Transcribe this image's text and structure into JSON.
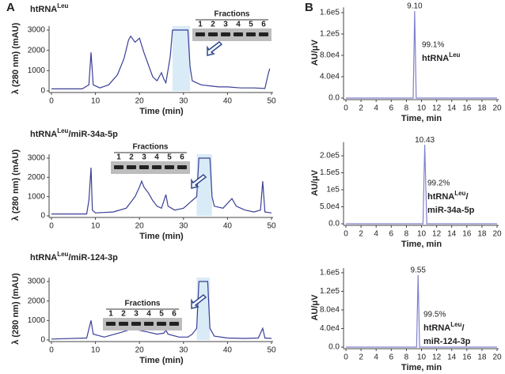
{
  "panels": [
    "A",
    "B"
  ],
  "chart_data": [
    {
      "type": "line",
      "title": [
        "htRNA",
        "Leu"
      ],
      "xlabel": "Time (min)",
      "ylabel": "λ (280 nm) (mAU)",
      "color": "#3a3f96",
      "xlim": [
        0,
        50
      ],
      "xticks": [
        0,
        10,
        20,
        30,
        40,
        50
      ],
      "ylim": [
        0,
        3200
      ],
      "yticks": [
        0,
        1000,
        2000,
        3000
      ],
      "x": [
        0,
        7,
        8.5,
        9,
        9.5,
        11,
        13,
        15,
        16.5,
        17.5,
        18,
        19,
        20,
        21,
        22,
        23,
        24,
        25,
        25.5,
        26,
        27,
        27.5,
        31,
        31.5,
        32,
        34,
        36,
        38,
        40,
        43,
        46,
        48.5,
        49.2,
        49.6
      ],
      "values": [
        100,
        100,
        300,
        1900,
        300,
        150,
        300,
        800,
        1600,
        2500,
        2700,
        2400,
        2600,
        1900,
        1300,
        700,
        500,
        900,
        600,
        400,
        1700,
        3000,
        3000,
        1200,
        500,
        300,
        250,
        200,
        200,
        150,
        150,
        120,
        800,
        1100
      ],
      "highlight": [
        27.5,
        31.5
      ],
      "inset": {
        "title": "Fractions",
        "lanes": [
          "1",
          "2",
          "3",
          "4",
          "5",
          "6"
        ]
      }
    },
    {
      "type": "line",
      "title": [
        "htRNA",
        "Leu",
        "/miR-34a-5p"
      ],
      "xlabel": "Time (min)",
      "ylabel": "λ (280 nm) (mAU)",
      "color": "#3a3f96",
      "xlim": [
        0,
        50
      ],
      "xticks": [
        0,
        10,
        20,
        30,
        40,
        50
      ],
      "ylim": [
        0,
        3200
      ],
      "yticks": [
        0,
        1000,
        2000,
        3000
      ],
      "x": [
        0,
        8,
        8.5,
        9,
        9.3,
        10,
        14,
        17,
        19,
        20,
        20.5,
        21,
        22,
        23,
        24,
        25,
        26,
        26.5,
        28,
        30,
        31,
        32,
        33,
        33.5,
        36,
        36.5,
        37,
        39,
        41,
        42,
        44,
        46,
        47.5,
        48,
        48.5,
        50
      ],
      "values": [
        100,
        100,
        800,
        2500,
        300,
        150,
        200,
        400,
        1000,
        1500,
        1800,
        1500,
        1200,
        800,
        500,
        400,
        1100,
        500,
        300,
        400,
        600,
        800,
        1000,
        3000,
        3000,
        1000,
        500,
        400,
        900,
        500,
        300,
        200,
        300,
        1800,
        200,
        150
      ],
      "highlight": [
        33,
        36.5
      ],
      "inset": {
        "title": "Fractions",
        "lanes": [
          "1",
          "2",
          "3",
          "4",
          "5",
          "6"
        ]
      }
    },
    {
      "type": "line",
      "title": [
        "htRNA",
        "Leu",
        "/miR-124-3p"
      ],
      "xlabel": "Time (min)",
      "ylabel": "λ (280 nm) (mAU)",
      "color": "#3a3f96",
      "xlim": [
        0,
        50
      ],
      "xticks": [
        0,
        10,
        20,
        30,
        40,
        50
      ],
      "ylim": [
        0,
        3200
      ],
      "yticks": [
        0,
        1000,
        2000,
        3000
      ],
      "x": [
        0,
        8,
        9,
        9.5,
        12,
        16,
        18,
        20,
        22,
        24,
        25.5,
        26,
        26.5,
        29,
        31,
        32,
        33,
        33.5,
        35.5,
        36,
        37,
        40,
        44,
        47,
        48,
        48.5,
        50
      ],
      "values": [
        50,
        100,
        1000,
        300,
        150,
        400,
        550,
        500,
        400,
        300,
        350,
        500,
        300,
        150,
        150,
        300,
        600,
        3000,
        3000,
        600,
        200,
        100,
        80,
        100,
        600,
        100,
        80
      ],
      "highlight": [
        33,
        36
      ],
      "inset": {
        "title": "Fractions",
        "lanes": [
          "1",
          "2",
          "3",
          "4",
          "5",
          "6"
        ]
      }
    },
    {
      "type": "line",
      "xlabel": "Time, min",
      "ylabel": "AU/μV",
      "color": "#8080cc",
      "xlim": [
        0,
        20
      ],
      "xticks": [
        0,
        2,
        4,
        6,
        8,
        10,
        12,
        14,
        16,
        18,
        20
      ],
      "ylim": [
        0,
        170000
      ],
      "yticks": [
        {
          "value": 0,
          "label": "0.0"
        },
        {
          "value": 40000,
          "label": "4.0e4"
        },
        {
          "value": 80000,
          "label": "8.0e4"
        },
        {
          "value": 120000,
          "label": "1.2e5"
        },
        {
          "value": 160000,
          "label": "1.6e5"
        }
      ],
      "x": [
        0,
        8.9,
        9.1,
        9.3,
        20
      ],
      "values": [
        0,
        0,
        163000,
        0,
        0
      ],
      "peak": {
        "x": 9.1,
        "label": "9.10"
      },
      "annotation": "99.1%",
      "label": [
        [
          "htRNA",
          "Leu"
        ]
      ]
    },
    {
      "type": "line",
      "xlabel": "Time, min",
      "ylabel": "AU/μV",
      "color": "#8080cc",
      "xlim": [
        0,
        20
      ],
      "xticks": [
        0,
        2,
        4,
        6,
        8,
        10,
        12,
        14,
        16,
        18,
        20
      ],
      "ylim": [
        0,
        240000
      ],
      "yticks": [
        {
          "value": 0,
          "label": "0.0"
        },
        {
          "value": 50000,
          "label": "5.0e4"
        },
        {
          "value": 100000,
          "label": "1e5"
        },
        {
          "value": 150000,
          "label": "1.5e5"
        },
        {
          "value": 200000,
          "label": "2.0e5"
        }
      ],
      "x": [
        0,
        10.2,
        10.43,
        10.7,
        20
      ],
      "values": [
        0,
        0,
        232000,
        0,
        0
      ],
      "peak": {
        "x": 10.43,
        "label": "10.43"
      },
      "annotation": "99.2%",
      "label": [
        [
          "htRNA",
          "Leu",
          "/"
        ],
        [
          "miR-34a-5p"
        ]
      ]
    },
    {
      "type": "line",
      "xlabel": "Time, min",
      "ylabel": "AU/μV",
      "color": "#8080cc",
      "xlim": [
        0,
        20
      ],
      "xticks": [
        0,
        2,
        4,
        6,
        8,
        10,
        12,
        14,
        16,
        18,
        20
      ],
      "ylim": [
        0,
        170000
      ],
      "yticks": [
        {
          "value": 0,
          "label": "0.0"
        },
        {
          "value": 40000,
          "label": "4.0e4"
        },
        {
          "value": 80000,
          "label": "8.0e4"
        },
        {
          "value": 120000,
          "label": "1.2e5"
        },
        {
          "value": 160000,
          "label": "1.6e5"
        }
      ],
      "x": [
        0,
        9.35,
        9.55,
        9.75,
        20
      ],
      "values": [
        0,
        0,
        155000,
        0,
        0
      ],
      "peak": {
        "x": 9.55,
        "label": "9.55"
      },
      "annotation": "99.5%",
      "label": [
        [
          "htRNA",
          "Leu",
          "/"
        ],
        [
          "miR-124-3p"
        ]
      ]
    }
  ]
}
